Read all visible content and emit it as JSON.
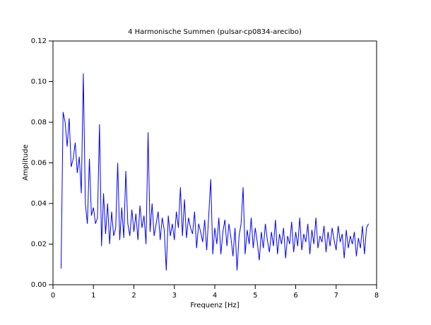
{
  "chart_data": {
    "type": "line",
    "title": "4 Harmonische Summen (pulsar-cp0834-arecibo)",
    "x_label": "Frequenz [Hz]",
    "y_label": "Amplitude",
    "xlim": [
      0,
      8
    ],
    "xticks": [
      0,
      1,
      2,
      3,
      4,
      5,
      6,
      7,
      8
    ],
    "ylim": [
      0,
      0.12
    ],
    "yticks": [
      {
        "value": 0,
        "label": "0.00"
      },
      {
        "value": 0.02,
        "label": "0.02"
      },
      {
        "value": 0.04,
        "label": "0.04"
      },
      {
        "value": 0.06,
        "label": "0.06"
      },
      {
        "value": 0.08,
        "label": "0.08"
      },
      {
        "value": 0.1,
        "label": "0.10"
      },
      {
        "value": 0.12,
        "label": "0.12"
      }
    ],
    "color": "#0000ff",
    "x": [
      0.2,
      0.25,
      0.3,
      0.35,
      0.4,
      0.45,
      0.5,
      0.55,
      0.6,
      0.65,
      0.7,
      0.75,
      0.8,
      0.85,
      0.9,
      0.95,
      1.0,
      1.05,
      1.1,
      1.15,
      1.2,
      1.25,
      1.3,
      1.35,
      1.4,
      1.45,
      1.5,
      1.55,
      1.6,
      1.65,
      1.7,
      1.75,
      1.8,
      1.85,
      1.9,
      1.95,
      2.0,
      2.05,
      2.1,
      2.15,
      2.2,
      2.25,
      2.3,
      2.35,
      2.4,
      2.45,
      2.5,
      2.55,
      2.6,
      2.65,
      2.7,
      2.75,
      2.8,
      2.85,
      2.9,
      2.95,
      3.0,
      3.05,
      3.1,
      3.15,
      3.2,
      3.25,
      3.3,
      3.35,
      3.4,
      3.45,
      3.5,
      3.55,
      3.6,
      3.65,
      3.7,
      3.75,
      3.8,
      3.85,
      3.9,
      3.95,
      4.0,
      4.05,
      4.1,
      4.15,
      4.2,
      4.25,
      4.3,
      4.35,
      4.4,
      4.45,
      4.5,
      4.55,
      4.6,
      4.65,
      4.7,
      4.75,
      4.8,
      4.85,
      4.9,
      4.95,
      5.0,
      5.05,
      5.1,
      5.15,
      5.2,
      5.25,
      5.3,
      5.35,
      5.4,
      5.45,
      5.5,
      5.55,
      5.6,
      5.65,
      5.7,
      5.75,
      5.8,
      5.85,
      5.9,
      5.95,
      6.0,
      6.05,
      6.1,
      6.15,
      6.2,
      6.25,
      6.3,
      6.35,
      6.4,
      6.45,
      6.5,
      6.55,
      6.6,
      6.65,
      6.7,
      6.75,
      6.8,
      6.85,
      6.9,
      6.95,
      7.0,
      7.05,
      7.1,
      7.15,
      7.2,
      7.25,
      7.3,
      7.35,
      7.4,
      7.45,
      7.5,
      7.55,
      7.6,
      7.65,
      7.7,
      7.75,
      7.8
    ],
    "values": [
      0.008,
      0.085,
      0.08,
      0.068,
      0.082,
      0.058,
      0.062,
      0.07,
      0.055,
      0.063,
      0.045,
      0.104,
      0.04,
      0.03,
      0.062,
      0.034,
      0.038,
      0.03,
      0.033,
      0.079,
      0.019,
      0.045,
      0.025,
      0.04,
      0.02,
      0.036,
      0.024,
      0.028,
      0.06,
      0.022,
      0.038,
      0.023,
      0.056,
      0.03,
      0.024,
      0.037,
      0.026,
      0.035,
      0.022,
      0.039,
      0.028,
      0.034,
      0.02,
      0.075,
      0.026,
      0.04,
      0.024,
      0.03,
      0.036,
      0.022,
      0.033,
      0.027,
      0.007,
      0.034,
      0.024,
      0.03,
      0.022,
      0.036,
      0.028,
      0.048,
      0.024,
      0.042,
      0.023,
      0.033,
      0.028,
      0.025,
      0.036,
      0.018,
      0.03,
      0.026,
      0.021,
      0.032,
      0.017,
      0.034,
      0.052,
      0.015,
      0.028,
      0.02,
      0.033,
      0.015,
      0.026,
      0.032,
      0.019,
      0.03,
      0.023,
      0.014,
      0.028,
      0.007,
      0.024,
      0.03,
      0.048,
      0.015,
      0.027,
      0.02,
      0.033,
      0.018,
      0.028,
      0.021,
      0.012,
      0.026,
      0.018,
      0.03,
      0.022,
      0.016,
      0.026,
      0.019,
      0.032,
      0.015,
      0.025,
      0.02,
      0.028,
      0.013,
      0.024,
      0.02,
      0.031,
      0.016,
      0.026,
      0.019,
      0.033,
      0.017,
      0.025,
      0.021,
      0.03,
      0.015,
      0.027,
      0.02,
      0.033,
      0.018,
      0.024,
      0.021,
      0.029,
      0.016,
      0.026,
      0.019,
      0.028,
      0.022,
      0.017,
      0.029,
      0.021,
      0.025,
      0.013,
      0.027,
      0.018,
      0.024,
      0.02,
      0.026,
      0.014,
      0.023,
      0.018,
      0.029,
      0.015,
      0.028,
      0.03
    ]
  }
}
